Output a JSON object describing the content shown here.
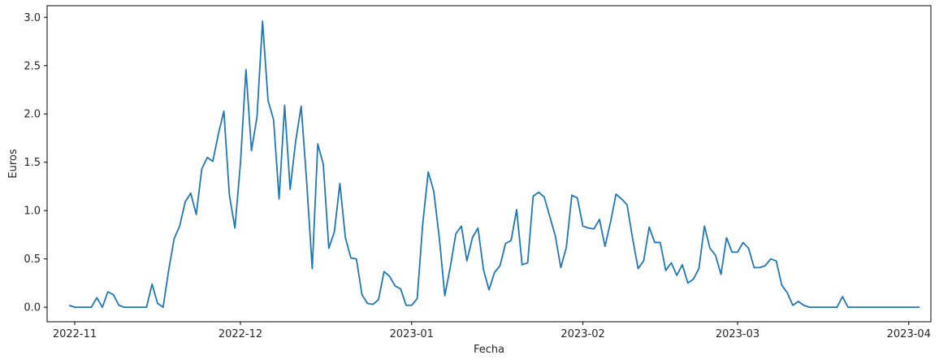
{
  "chart_data": {
    "type": "line",
    "xlabel": "Fecha",
    "ylabel": "Euros",
    "x_start": "2022-10-31",
    "x_step_days": 1,
    "xlim": [
      "2022-10-27",
      "2023-04-05"
    ],
    "ylim": [
      -0.15,
      3.12
    ],
    "x_ticks": [
      "2022-11-01",
      "2022-12-01",
      "2023-01-01",
      "2023-02-01",
      "2023-03-01",
      "2023-04-01"
    ],
    "x_tick_labels": [
      "2022-11",
      "2022-12",
      "2023-01",
      "2023-02",
      "2023-03",
      "2023-04"
    ],
    "y_ticks": [
      0.0,
      0.5,
      1.0,
      1.5,
      2.0,
      2.5,
      3.0
    ],
    "y_tick_labels": [
      "0.0",
      "0.5",
      "1.0",
      "1.5",
      "2.0",
      "2.5",
      "3.0"
    ],
    "grid": false,
    "series": [
      {
        "color": "#1f77b4",
        "values": [
          0.02,
          0.0,
          0.0,
          0.0,
          0.0,
          0.1,
          0.0,
          0.16,
          0.13,
          0.02,
          0.0,
          0.0,
          0.0,
          0.0,
          0.0,
          0.24,
          0.04,
          0.0,
          0.38,
          0.71,
          0.84,
          1.09,
          1.18,
          0.96,
          1.43,
          1.55,
          1.51,
          1.79,
          2.03,
          1.16,
          0.82,
          1.49,
          2.46,
          1.62,
          1.97,
          2.96,
          2.14,
          1.94,
          1.12,
          2.09,
          1.22,
          1.72,
          2.08,
          1.29,
          0.4,
          1.69,
          1.48,
          0.61,
          0.78,
          1.28,
          0.72,
          0.51,
          0.5,
          0.13,
          0.04,
          0.03,
          0.08,
          0.37,
          0.32,
          0.22,
          0.19,
          0.02,
          0.02,
          0.09,
          0.86,
          1.4,
          1.2,
          0.72,
          0.12,
          0.42,
          0.76,
          0.84,
          0.48,
          0.72,
          0.82,
          0.39,
          0.18,
          0.36,
          0.43,
          0.66,
          0.69,
          1.01,
          0.44,
          0.46,
          1.15,
          1.19,
          1.14,
          0.94,
          0.74,
          0.41,
          0.62,
          1.16,
          1.13,
          0.84,
          0.82,
          0.81,
          0.91,
          0.63,
          0.88,
          1.17,
          1.12,
          1.06,
          0.71,
          0.4,
          0.48,
          0.83,
          0.67,
          0.67,
          0.38,
          0.46,
          0.33,
          0.44,
          0.25,
          0.29,
          0.4,
          0.84,
          0.61,
          0.54,
          0.34,
          0.72,
          0.57,
          0.57,
          0.67,
          0.61,
          0.41,
          0.41,
          0.43,
          0.5,
          0.48,
          0.23,
          0.15,
          0.02,
          0.06,
          0.02,
          0.0,
          0.0,
          0.0,
          0.0,
          0.0,
          0.0,
          0.11,
          0.0,
          0.0,
          0.0,
          0.0,
          0.0,
          0.0,
          0.0,
          0.0,
          0.0,
          0.0,
          0.0,
          0.0,
          0.0,
          0.0
        ]
      }
    ]
  }
}
